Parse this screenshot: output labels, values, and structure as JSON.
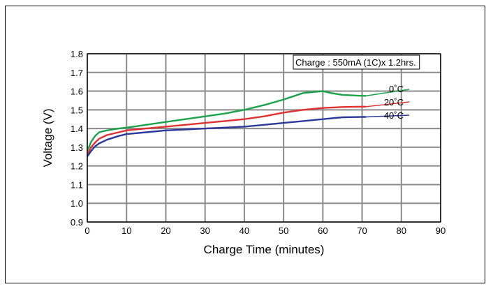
{
  "chart_data": {
    "type": "line",
    "title": "",
    "xlabel": "Charge Time (minutes)",
    "ylabel": "Voltage (V)",
    "xlim": [
      0,
      90
    ],
    "ylim": [
      0.9,
      1.8
    ],
    "x_ticks": [
      "0",
      "10",
      "20",
      "30",
      "40",
      "50",
      "60",
      "70",
      "80",
      "90"
    ],
    "y_ticks": [
      "0.9",
      "1.0",
      "1.1",
      "1.2",
      "1.3",
      "1.4",
      "1.5",
      "1.6",
      "1.7",
      "1.8"
    ],
    "grid": true,
    "annotation": "Charge : 550mA (1C)x 1.2hrs.",
    "series": [
      {
        "name": "0˚C",
        "color": "#1aa34a",
        "x": [
          0,
          1,
          2,
          3,
          5,
          8,
          10,
          15,
          20,
          25,
          30,
          35,
          40,
          45,
          50,
          55,
          60,
          62,
          65,
          70,
          71
        ],
        "y": [
          1.28,
          1.33,
          1.36,
          1.38,
          1.39,
          1.4,
          1.405,
          1.42,
          1.435,
          1.45,
          1.465,
          1.48,
          1.5,
          1.525,
          1.555,
          1.59,
          1.6,
          1.59,
          1.58,
          1.575,
          1.575
        ]
      },
      {
        "name": "20˚C",
        "color": "#e03131",
        "x": [
          0,
          1,
          2,
          3,
          5,
          8,
          10,
          15,
          20,
          25,
          30,
          35,
          40,
          45,
          50,
          55,
          60,
          65,
          70,
          71
        ],
        "y": [
          1.26,
          1.3,
          1.325,
          1.345,
          1.365,
          1.38,
          1.39,
          1.4,
          1.41,
          1.42,
          1.43,
          1.44,
          1.45,
          1.465,
          1.485,
          1.5,
          1.51,
          1.515,
          1.517,
          1.517
        ]
      },
      {
        "name": "40˚C",
        "color": "#2b3a9a",
        "x": [
          0,
          1,
          2,
          3,
          5,
          8,
          10,
          15,
          20,
          25,
          30,
          35,
          40,
          45,
          50,
          55,
          60,
          65,
          70,
          71
        ],
        "y": [
          1.25,
          1.28,
          1.305,
          1.32,
          1.34,
          1.36,
          1.37,
          1.38,
          1.39,
          1.395,
          1.4,
          1.405,
          1.41,
          1.42,
          1.43,
          1.44,
          1.45,
          1.46,
          1.462,
          1.462
        ]
      }
    ]
  }
}
